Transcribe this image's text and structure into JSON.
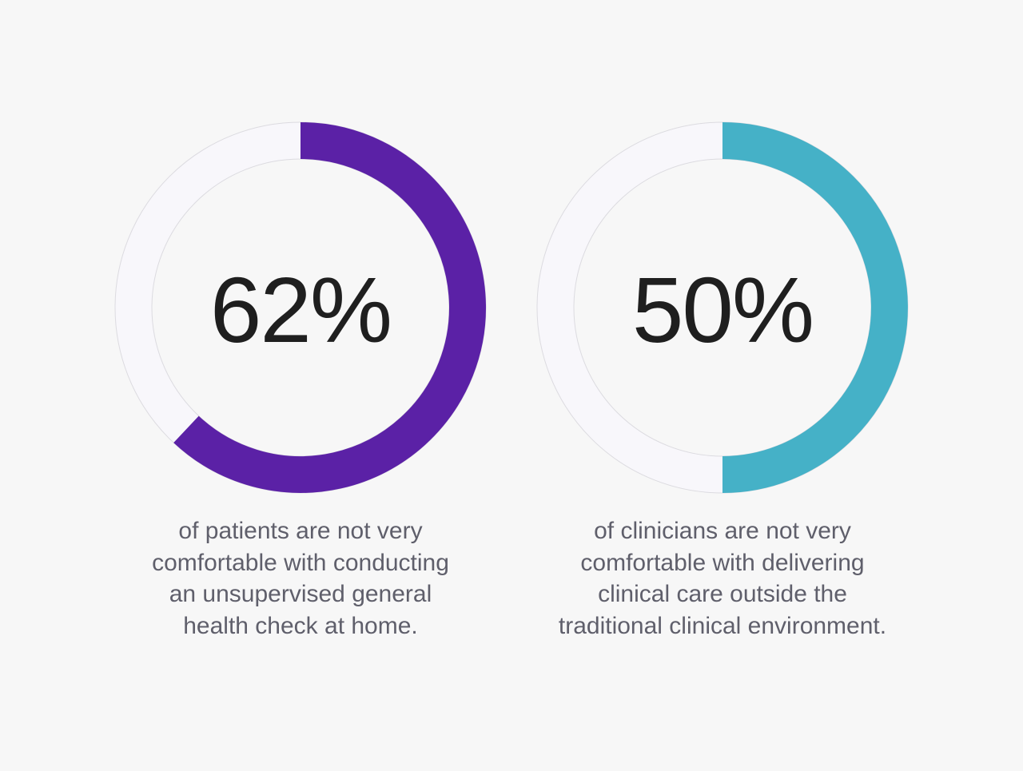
{
  "chart_data": [
    {
      "type": "pie",
      "value": 62,
      "label": "62%",
      "color": "#5b21a6",
      "track_color": "#f8f7fb",
      "caption_lines": [
        "of patients are not very",
        "comfortable with conducting",
        "an unsupervised general",
        "health check at home."
      ]
    },
    {
      "type": "pie",
      "value": 50,
      "label": "50%",
      "color": "#45b1c7",
      "track_color": "#f8f7fb",
      "caption_lines": [
        "of clinicians are not very",
        "comfortable with delivering",
        "clinical care outside the",
        "traditional clinical environment."
      ]
    }
  ]
}
